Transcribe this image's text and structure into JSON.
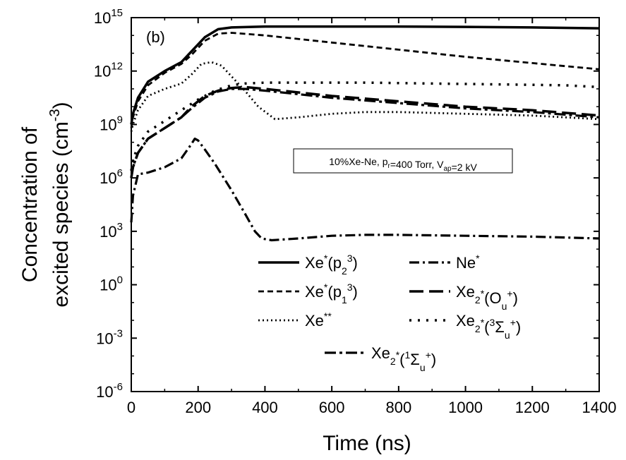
{
  "chart_data": {
    "type": "line",
    "panel_label": "(b)",
    "annotation": "10%Xe-Ne, p_r=400 Torr, V_ap=2 kV",
    "xlabel": "Time (ns)",
    "ylabel_line1": "Concentration of",
    "ylabel_line2": "excited species (cm^-3)",
    "xlim": [
      0,
      1400
    ],
    "ylim_exp": [
      -6,
      15
    ],
    "yscale": "log",
    "x_ticks": [
      0,
      200,
      400,
      600,
      800,
      1000,
      1200,
      1400
    ],
    "y_ticks_exp": [
      -6,
      -3,
      0,
      3,
      6,
      9,
      12,
      15
    ],
    "series": [
      {
        "name": "Xe*(3p2)",
        "legend": {
          "base": "Xe",
          "sup1": "*",
          "open": "(",
          "sup2": "3",
          "core": "p",
          "sub": "2",
          "close": ")"
        },
        "style": "solid",
        "x": [
          0,
          5,
          20,
          50,
          100,
          150,
          180,
          220,
          260,
          300,
          400,
          600,
          800,
          1000,
          1200,
          1400
        ],
        "log10_y": [
          9.0,
          9.6,
          10.5,
          11.4,
          12.0,
          12.5,
          13.1,
          13.9,
          14.35,
          14.45,
          14.5,
          14.5,
          14.5,
          14.48,
          14.45,
          14.4
        ]
      },
      {
        "name": "Xe*(3p1)",
        "legend": {
          "base": "Xe",
          "sup1": "*",
          "open": "(",
          "sup2": "3",
          "core": "p",
          "sub": "1",
          "close": ")"
        },
        "style": "dashed",
        "x": [
          0,
          5,
          20,
          50,
          100,
          150,
          180,
          220,
          260,
          300,
          400,
          600,
          800,
          1000,
          1200,
          1400
        ],
        "log10_y": [
          8.8,
          9.4,
          10.3,
          11.2,
          11.9,
          12.4,
          12.9,
          13.7,
          14.1,
          14.15,
          14.0,
          13.6,
          13.2,
          12.8,
          12.45,
          12.1
        ]
      },
      {
        "name": "Xe**",
        "legend": {
          "base": "Xe",
          "sup1": "**",
          "open": "",
          "sup2": "",
          "core": "",
          "sub": "",
          "close": ""
        },
        "style": "dotted",
        "x": [
          0,
          5,
          20,
          50,
          100,
          150,
          180,
          210,
          240,
          270,
          300,
          340,
          380,
          430,
          500,
          600,
          700,
          800,
          1000,
          1200,
          1400
        ],
        "log10_y": [
          8.6,
          9.0,
          9.8,
          10.6,
          11.0,
          11.3,
          11.8,
          12.4,
          12.5,
          12.3,
          11.7,
          10.9,
          10.0,
          9.3,
          9.4,
          9.6,
          9.7,
          9.7,
          9.6,
          9.5,
          9.3
        ]
      },
      {
        "name": "Ne*",
        "legend": {
          "base": "Ne",
          "sup1": "*",
          "open": "",
          "sup2": "",
          "core": "",
          "sub": "",
          "close": ""
        },
        "style": "dashdot",
        "x": [
          0,
          5,
          20,
          50,
          100,
          150,
          180,
          190,
          200,
          220,
          250,
          300,
          340,
          370,
          390,
          420,
          500,
          600,
          700,
          800,
          1000,
          1200,
          1400
        ],
        "log10_y": [
          3.5,
          5.0,
          6.2,
          6.3,
          6.6,
          7.1,
          7.9,
          8.2,
          8.1,
          7.6,
          6.8,
          5.3,
          4.0,
          3.0,
          2.6,
          2.5,
          2.6,
          2.75,
          2.8,
          2.8,
          2.75,
          2.7,
          2.6
        ]
      },
      {
        "name": "Xe2*(O+u)",
        "legend": {
          "base": "Xe",
          "sub_base": "2",
          "sup1": "*",
          "open": "(",
          "core": "O",
          "sub": "u",
          "sup2": "+",
          "close": ")"
        },
        "style": "longdash",
        "x": [
          0,
          5,
          20,
          50,
          100,
          150,
          180,
          220,
          260,
          300,
          340,
          400,
          500,
          600,
          800,
          1000,
          1200,
          1400
        ],
        "log10_y": [
          6.0,
          6.6,
          7.4,
          8.2,
          8.8,
          9.4,
          10.0,
          10.6,
          10.9,
          11.05,
          11.1,
          11.0,
          10.8,
          10.6,
          10.3,
          10.0,
          9.8,
          9.5
        ]
      },
      {
        "name": "Xe2*(3Σ+u)",
        "legend": {
          "base": "Xe",
          "sub_base": "2",
          "sup1": "*",
          "open": "(",
          "sup_pre": "3",
          "core": "Σ",
          "sub": "u",
          "sup2": "+",
          "close": ")"
        },
        "style": "sparse",
        "x": [
          0,
          5,
          20,
          50,
          100,
          150,
          200,
          250,
          300,
          340,
          400,
          500,
          700,
          900,
          1100,
          1300,
          1400
        ],
        "log10_y": [
          6.4,
          7.0,
          7.8,
          8.6,
          9.2,
          9.8,
          10.4,
          10.9,
          11.2,
          11.3,
          11.35,
          11.35,
          11.35,
          11.3,
          11.25,
          11.2,
          11.1
        ]
      },
      {
        "name": "Xe2*(1Σ+u)",
        "legend": {
          "base": "Xe",
          "sub_base": "2",
          "sup1": "*",
          "open": "(",
          "sup_pre": "1",
          "core": "Σ",
          "sub": "u",
          "sup2": "+",
          "close": ")"
        },
        "style": "dashdot2",
        "x": [
          0,
          5,
          20,
          50,
          100,
          150,
          180,
          220,
          260,
          300,
          340,
          400,
          500,
          600,
          800,
          1000,
          1200,
          1400
        ],
        "log10_y": [
          6.0,
          6.6,
          7.4,
          8.2,
          8.8,
          9.4,
          9.9,
          10.5,
          10.85,
          11.0,
          11.0,
          10.9,
          10.7,
          10.5,
          10.2,
          9.9,
          9.7,
          9.4
        ]
      }
    ],
    "legend_layout": [
      {
        "series": 0,
        "col": 0,
        "row": 0
      },
      {
        "series": 3,
        "col": 1,
        "row": 0
      },
      {
        "series": 1,
        "col": 0,
        "row": 1
      },
      {
        "series": 4,
        "col": 1,
        "row": 1
      },
      {
        "series": 2,
        "col": 0,
        "row": 2
      },
      {
        "series": 5,
        "col": 1,
        "row": 2
      },
      {
        "series": 6,
        "col": 0.5,
        "row": 3
      }
    ]
  }
}
